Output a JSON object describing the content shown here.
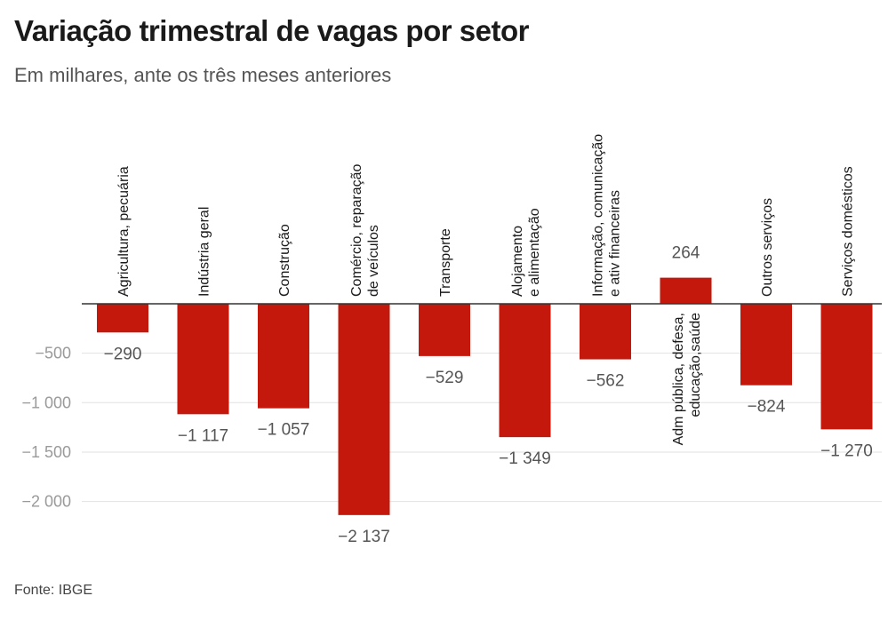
{
  "chart_data": {
    "type": "bar",
    "title": "Variação trimestral de vagas por setor",
    "subtitle": "Em milhares, ante os três meses anteriores",
    "source": "Fonte: IBGE",
    "categories": [
      [
        "Agricultura, pecuária"
      ],
      [
        "Indústria geral"
      ],
      [
        "Construção"
      ],
      [
        "Comércio, reparação",
        "de veículos"
      ],
      [
        "Transporte"
      ],
      [
        "Alojamento",
        "e alimentação"
      ],
      [
        "Informação, comunicação",
        "e ativ financeiras"
      ],
      [
        "Adm pública, defesa,",
        "educação,saúde"
      ],
      [
        "Outros serviços"
      ],
      [
        "Serviços domésticos"
      ]
    ],
    "values": [
      -290,
      -1117,
      -1057,
      -2137,
      -529,
      -1349,
      -562,
      264,
      -824,
      -1270
    ],
    "value_labels": [
      "−290",
      "−1 117",
      "−1 057",
      "−2 137",
      "−529",
      "−1 349",
      "−562",
      "264",
      "−824",
      "−1 270"
    ],
    "yticks": [
      -500,
      -1000,
      -1500,
      -2000
    ],
    "ytick_labels": [
      "−500",
      "−1 000",
      "−1 500",
      "−2 000"
    ],
    "ylim": [
      -2250,
      300
    ],
    "colors": {
      "bar": "#c4180d",
      "grid": "#e2e2e2",
      "axis": "#333333"
    }
  }
}
